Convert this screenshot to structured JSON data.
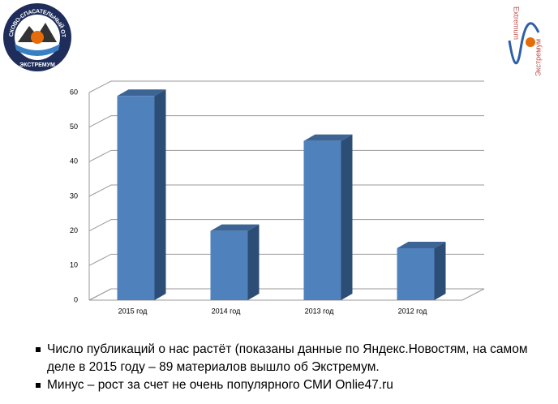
{
  "logos": {
    "left_ring": "ПОИСКОВО-СПАСАТЕЛЬНЫЙ ОТРЯД",
    "left_name": "ЭКСТРЕМУМ",
    "right_latin": "Extremum",
    "right_cyrillic": "Экстремум"
  },
  "chart_data": {
    "type": "bar",
    "categories": [
      "2015 год",
      "2014 год",
      "2013 год",
      "2012 год"
    ],
    "values": [
      59,
      20,
      46,
      15
    ],
    "color": "#4f81bd",
    "ylim": [
      0,
      60
    ],
    "yticks": [
      0,
      10,
      20,
      30,
      40,
      50,
      60
    ],
    "grid": true
  },
  "bullets": [
    "Число публикаций о нас растёт (показаны данные по Яндекс.Новостям, на самом деле в 2015 году – 89 материалов вышло об Экстремум.",
    "Минус – рост за счет не очень популярного СМИ Onlie47.ru"
  ]
}
